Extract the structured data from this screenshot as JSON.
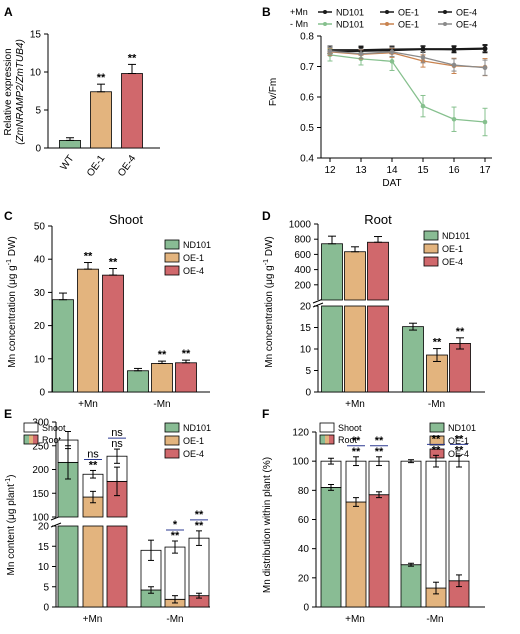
{
  "colors": {
    "green": "#89bc94",
    "tan": "#e3b47e",
    "red": "#d0686c",
    "white": "#ffffff",
    "mplus": "#1a1a1a",
    "mminus": "#86c08e",
    "oe1": "#c9834f",
    "oe4": "#8a8a8a",
    "sig_red": "#d62728",
    "sig_navy": "#2b3990"
  },
  "chart_data": [
    {
      "panel": "A",
      "type": "bar",
      "ylabel": "Relative expression",
      "ylabel_sub": "(ZmNRAMP2/ZmTUB4)",
      "ylim": [
        0,
        15
      ],
      "yticks": [
        0,
        5,
        10,
        15
      ],
      "categories": [
        "WT",
        "OE-1",
        "OE-4"
      ],
      "values": [
        1.0,
        7.4,
        9.8
      ],
      "errors": [
        0.35,
        1.0,
        1.2
      ],
      "significance": [
        "",
        "**",
        "**"
      ],
      "colors": [
        "#89bc94",
        "#e3b47e",
        "#d0686c"
      ]
    },
    {
      "panel": "B",
      "type": "line",
      "ylabel": "Fv/Fm",
      "xlabel": "DAT",
      "x": [
        12,
        13,
        14,
        15,
        16,
        17
      ],
      "ylim": [
        0.4,
        0.8
      ],
      "yticks": [
        "0.4",
        "0.5",
        "0.6",
        "0.7",
        "0.8"
      ],
      "legend_left": [
        "+Mn",
        "- Mn"
      ],
      "legend": [
        {
          "label": "ND101",
          "color": "#1a1a1a"
        },
        {
          "label": "OE-1",
          "color": "#1a1a1a"
        },
        {
          "label": "OE-4",
          "color": "#1a1a1a"
        },
        {
          "label": "ND101",
          "color": "#86c08e"
        },
        {
          "label": "OE-1",
          "color": "#c9834f"
        },
        {
          "label": "OE-4",
          "color": "#8a8a8a"
        }
      ],
      "series": [
        {
          "color": "#1a1a1a",
          "values": [
            0.755,
            0.755,
            0.757,
            0.758,
            0.758,
            0.76
          ],
          "err": [
            0.012,
            0.012,
            0.01,
            0.01,
            0.01,
            0.012
          ]
        },
        {
          "color": "#1a1a1a",
          "values": [
            0.75,
            0.752,
            0.755,
            0.757,
            0.756,
            0.758
          ],
          "err": [
            0.012,
            0.012,
            0.01,
            0.01,
            0.01,
            0.012
          ]
        },
        {
          "color": "#1a1a1a",
          "values": [
            0.748,
            0.75,
            0.752,
            0.756,
            0.755,
            0.757
          ],
          "err": [
            0.012,
            0.012,
            0.01,
            0.01,
            0.01,
            0.012
          ]
        },
        {
          "color": "#86c08e",
          "values": [
            0.738,
            0.725,
            0.717,
            0.57,
            0.527,
            0.518
          ],
          "err": [
            0.02,
            0.02,
            0.03,
            0.035,
            0.04,
            0.045
          ]
        },
        {
          "color": "#c9834f",
          "values": [
            0.748,
            0.74,
            0.745,
            0.718,
            0.702,
            0.698
          ],
          "err": [
            0.012,
            0.015,
            0.015,
            0.02,
            0.025,
            0.028
          ]
        },
        {
          "color": "#8a8a8a",
          "values": [
            0.75,
            0.742,
            0.748,
            0.73,
            0.705,
            0.696
          ],
          "err": [
            0.012,
            0.015,
            0.015,
            0.018,
            0.02,
            0.025
          ]
        }
      ]
    },
    {
      "panel": "C",
      "type": "bar",
      "title": "Shoot",
      "ylabel": "Mn concentration (μg g",
      "ylabel_sup": "-1",
      "ylabel_end": " DW)",
      "ylim": [
        0,
        50
      ],
      "yticks": [
        0,
        10,
        20,
        30,
        40,
        50
      ],
      "categories": [
        "+Mn",
        "-Mn"
      ],
      "legend": [
        "ND101",
        "OE-1",
        "OE-4"
      ],
      "series": [
        {
          "name": "ND101",
          "values": [
            27.8,
            6.4
          ],
          "err": [
            2.0,
            0.7
          ]
        },
        {
          "name": "OE-1",
          "values": [
            37.0,
            8.6
          ],
          "err": [
            2.0,
            0.7
          ]
        },
        {
          "name": "OE-4",
          "values": [
            35.2,
            8.8
          ],
          "err": [
            2.0,
            0.8
          ]
        }
      ],
      "significance": [
        [
          "",
          "**",
          "**"
        ],
        [
          "",
          "**",
          "**"
        ]
      ]
    },
    {
      "panel": "D",
      "type": "bar",
      "title": "Root",
      "ylabel": "Mn concentration (μg g",
      "ylabel_sup": "-1",
      "ylabel_end": " DW)",
      "broken_axis": true,
      "lower_ticks": [
        0,
        5,
        10,
        15,
        20
      ],
      "upper_ticks": [
        200,
        400,
        600,
        800,
        1000
      ],
      "categories": [
        "+Mn",
        "-Mn"
      ],
      "legend": [
        "ND101",
        "OE-1",
        "OE-4"
      ],
      "series": [
        {
          "name": "ND101",
          "values": [
            740,
            15.2
          ],
          "err": [
            100,
            0.8
          ]
        },
        {
          "name": "OE-1",
          "values": [
            635,
            8.6
          ],
          "err": [
            65,
            1.5
          ]
        },
        {
          "name": "OE-4",
          "values": [
            760,
            11.3
          ],
          "err": [
            75,
            1.3
          ]
        }
      ],
      "significance": [
        [
          "",
          "",
          ""
        ],
        [
          "",
          "**",
          "**"
        ]
      ]
    },
    {
      "panel": "E",
      "type": "stacked-bar",
      "ylabel": "Mn content (μg plant",
      "ylabel_sup": "-1",
      "ylabel_end": ")",
      "broken_axis": true,
      "lower_ticks": [
        0,
        5,
        10,
        15,
        20
      ],
      "upper_ticks": [
        100,
        150,
        200,
        250,
        300
      ],
      "categories": [
        "+Mn",
        "-Mn"
      ],
      "stack_legend": [
        "Shoot",
        "Root"
      ],
      "legend": [
        "ND101",
        "OE-1",
        "OE-4"
      ],
      "root": [
        [
          215,
          142,
          175
        ],
        [
          4.2,
          1.9,
          2.8
        ]
      ],
      "root_err": [
        [
          35,
          12,
          30
        ],
        [
          0.8,
          0.9,
          0.6
        ]
      ],
      "total": [
        [
          262,
          190,
          228
        ],
        [
          14.0,
          14.8,
          17.0
        ]
      ],
      "total_err": [
        [
          18,
          8,
          15
        ],
        [
          2.5,
          1.5,
          1.8
        ]
      ],
      "sig_top": [
        [
          "",
          "ns",
          "ns"
        ],
        [
          "",
          "*",
          "**"
        ]
      ],
      "sig_bottom": [
        [
          "",
          "**",
          "ns"
        ],
        [
          "",
          "**",
          "**"
        ]
      ]
    },
    {
      "panel": "F",
      "type": "stacked-bar",
      "ylabel": "Mn distribution within plant (%)",
      "ylim": [
        0,
        120
      ],
      "yticks": [
        0,
        20,
        40,
        60,
        80,
        100,
        120
      ],
      "categories": [
        "+Mn",
        "-Mn"
      ],
      "stack_legend": [
        "Shoot",
        "Root"
      ],
      "legend": [
        "ND101",
        "OE-1",
        "OE-4"
      ],
      "root": [
        [
          82,
          72,
          77
        ],
        [
          29,
          13,
          18
        ]
      ],
      "root_err": [
        [
          2,
          3,
          2
        ],
        [
          1,
          4,
          4
        ]
      ],
      "total": [
        [
          100,
          100,
          100
        ],
        [
          100,
          100,
          100
        ]
      ],
      "total_err": [
        [
          2,
          3,
          3
        ],
        [
          1,
          4,
          4
        ]
      ],
      "sig_top": [
        [
          "",
          "**",
          "**"
        ],
        [
          "",
          "**",
          "**"
        ]
      ],
      "sig_bottom": [
        [
          "",
          "**",
          "**"
        ],
        [
          "",
          "**",
          "**"
        ]
      ]
    }
  ]
}
